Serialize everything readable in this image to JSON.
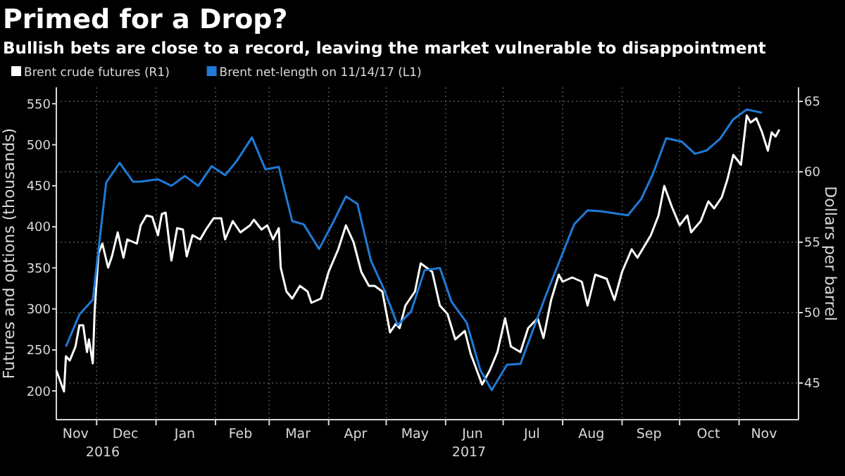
{
  "chart_data": {
    "type": "line",
    "title": "Primed for a Drop?",
    "subtitle": "Bullish bets are close to a record, leaving the market vulnerable to disappointment",
    "ylabel": "Futures and options (thousands)",
    "y2label": "Dollars per barrel",
    "xlim": [
      "2016-11-10",
      "2017-12-02"
    ],
    "xticks": [
      {
        "value": "2016-12-01",
        "label": null
      },
      {
        "value": "2017-01-01",
        "label": null
      },
      {
        "value": "2017-02-01",
        "label": null
      },
      {
        "value": "2017-03-01",
        "label": null
      },
      {
        "value": "2017-04-01",
        "label": null
      },
      {
        "value": "2017-05-01",
        "label": null
      },
      {
        "value": "2017-06-01",
        "label": null
      },
      {
        "value": "2017-07-01",
        "label": null
      },
      {
        "value": "2017-08-01",
        "label": null
      },
      {
        "value": "2017-09-01",
        "label": null
      },
      {
        "value": "2017-10-01",
        "label": null
      },
      {
        "value": "2017-11-01",
        "label": null
      },
      {
        "value": "2016-11-20",
        "label": "Nov"
      },
      {
        "value": "2016-12-16",
        "label": "Dec"
      },
      {
        "value": "2017-01-16",
        "label": "Jan"
      },
      {
        "value": "2017-02-14",
        "label": "Feb"
      },
      {
        "value": "2017-03-16",
        "label": "Mar"
      },
      {
        "value": "2017-04-15",
        "label": "Apr"
      },
      {
        "value": "2017-05-16",
        "label": "May"
      },
      {
        "value": "2017-06-15",
        "label": "Jun"
      },
      {
        "value": "2017-07-16",
        "label": "Jul"
      },
      {
        "value": "2017-08-16",
        "label": "Aug"
      },
      {
        "value": "2017-09-15",
        "label": "Sep"
      },
      {
        "value": "2017-10-16",
        "label": "Oct"
      },
      {
        "value": "2017-11-14",
        "label": "Nov"
      }
    ],
    "ylim": [
      165,
      570
    ],
    "yticks": [
      200,
      250,
      300,
      350,
      400,
      450,
      500,
      550
    ],
    "y2lim": [
      42.4,
      66
    ],
    "y2ticks": [
      45,
      50,
      55,
      60,
      65
    ],
    "grid": true,
    "legend": "top left",
    "line_style": "solid",
    "annotations": [
      "2016",
      "2017"
    ],
    "series": [
      {
        "name": "Brent crude futures (R1)",
        "color": "#ffffff",
        "axis": "y2",
        "x": [
          "2016-11-10",
          "2016-11-14",
          "2016-11-15",
          "2016-11-17",
          "2016-11-20",
          "2016-11-22",
          "2016-11-24",
          "2016-11-26",
          "2016-11-27",
          "2016-11-29",
          "2016-11-30",
          "2016-12-02",
          "2016-12-04",
          "2016-12-07",
          "2016-12-09",
          "2016-12-12",
          "2016-12-15",
          "2016-12-17",
          "2016-12-22",
          "2016-12-24",
          "2016-12-27",
          "2016-12-30",
          "2017-01-02",
          "2017-01-04",
          "2017-01-06",
          "2017-01-09",
          "2017-01-12",
          "2017-01-15",
          "2017-01-17",
          "2017-01-20",
          "2017-01-24",
          "2017-01-27",
          "2017-01-31",
          "2017-02-04",
          "2017-02-06",
          "2017-02-10",
          "2017-02-14",
          "2017-02-19",
          "2017-02-21",
          "2017-02-25",
          "2017-02-28",
          "2017-03-03",
          "2017-03-06",
          "2017-03-07",
          "2017-03-10",
          "2017-03-13",
          "2017-03-17",
          "2017-03-21",
          "2017-03-23",
          "2017-03-28",
          "2017-04-01",
          "2017-04-06",
          "2017-04-10",
          "2017-04-14",
          "2017-04-18",
          "2017-04-22",
          "2017-04-25",
          "2017-04-29",
          "2017-05-03",
          "2017-05-06",
          "2017-05-08",
          "2017-05-11",
          "2017-05-16",
          "2017-05-19",
          "2017-05-22",
          "2017-05-25",
          "2017-05-29",
          "2017-06-02",
          "2017-06-06",
          "2017-06-11",
          "2017-06-14",
          "2017-06-20",
          "2017-06-24",
          "2017-06-28",
          "2017-07-02",
          "2017-07-05",
          "2017-07-10",
          "2017-07-14",
          "2017-07-19",
          "2017-07-22",
          "2017-07-26",
          "2017-07-30",
          "2017-08-01",
          "2017-08-06",
          "2017-08-11",
          "2017-08-14",
          "2017-08-18",
          "2017-08-24",
          "2017-08-28",
          "2017-09-01",
          "2017-09-06",
          "2017-09-09",
          "2017-09-16",
          "2017-09-20",
          "2017-09-23",
          "2017-09-27",
          "2017-10-01",
          "2017-10-05",
          "2017-10-07",
          "2017-10-12",
          "2017-10-16",
          "2017-10-19",
          "2017-10-23",
          "2017-10-26",
          "2017-10-29",
          "2017-11-02",
          "2017-11-05",
          "2017-11-07",
          "2017-11-10",
          "2017-11-13",
          "2017-11-16",
          "2017-11-18",
          "2017-11-20",
          "2017-11-22"
        ],
        "values": [
          45.9,
          44.4,
          46.9,
          46.6,
          47.6,
          49.1,
          49.1,
          47.2,
          48.1,
          46.4,
          50.2,
          54.2,
          54.9,
          53.2,
          54.0,
          55.7,
          53.9,
          55.2,
          54.9,
          56.2,
          56.9,
          56.8,
          55.5,
          57.0,
          57.1,
          53.7,
          56.0,
          55.9,
          54.0,
          55.5,
          55.2,
          55.9,
          56.7,
          56.7,
          55.2,
          56.5,
          55.7,
          56.2,
          56.6,
          55.9,
          56.2,
          55.2,
          56.0,
          53.2,
          51.5,
          51.0,
          51.9,
          51.5,
          50.7,
          51.0,
          52.9,
          54.5,
          56.2,
          55.0,
          52.9,
          51.9,
          51.9,
          51.5,
          48.6,
          49.2,
          48.9,
          50.5,
          51.5,
          53.5,
          53.2,
          52.9,
          50.5,
          49.9,
          48.1,
          48.7,
          47.1,
          44.9,
          45.9,
          47.2,
          49.6,
          47.6,
          47.2,
          48.9,
          49.6,
          48.2,
          50.9,
          52.7,
          52.2,
          52.5,
          52.2,
          50.5,
          52.7,
          52.4,
          50.9,
          52.9,
          54.5,
          53.9,
          55.5,
          56.9,
          59.0,
          57.5,
          56.2,
          56.9,
          55.7,
          56.5,
          57.9,
          57.4,
          58.2,
          59.5,
          61.2,
          60.5,
          64.0,
          63.5,
          63.8,
          62.8,
          61.5,
          62.8,
          62.5,
          63.0
        ]
      },
      {
        "name": "Brent net-length on 11/14/17 (L1)",
        "color": "#1f7ad6",
        "x": [
          "2016-11-15",
          "2016-11-22",
          "2016-11-29",
          "2016-12-06",
          "2016-12-13",
          "2016-12-20",
          "2016-12-24",
          "2017-01-02",
          "2017-01-09",
          "2017-01-16",
          "2017-01-23",
          "2017-01-30",
          "2017-02-06",
          "2017-02-12",
          "2017-02-20",
          "2017-02-27",
          "2017-03-06",
          "2017-03-13",
          "2017-03-19",
          "2017-03-27",
          "2017-04-03",
          "2017-04-10",
          "2017-04-16",
          "2017-04-23",
          "2017-04-30",
          "2017-05-07",
          "2017-05-14",
          "2017-05-21",
          "2017-05-29",
          "2017-06-04",
          "2017-06-12",
          "2017-06-19",
          "2017-06-25",
          "2017-07-03",
          "2017-07-10",
          "2017-07-23",
          "2017-08-07",
          "2017-08-14",
          "2017-08-21",
          "2017-09-04",
          "2017-09-11",
          "2017-09-17",
          "2017-09-24",
          "2017-10-02",
          "2017-10-09",
          "2017-10-15",
          "2017-10-22",
          "2017-10-29",
          "2017-11-05",
          "2017-11-13"
        ],
        "values": [
          254,
          293,
          311,
          454,
          478,
          455,
          455,
          458,
          450,
          462,
          450,
          474,
          463,
          480,
          509,
          470,
          473,
          407,
          403,
          373,
          404,
          437,
          428,
          359,
          323,
          280,
          297,
          347,
          350,
          309,
          283,
          226,
          201,
          232,
          233,
          315,
          403,
          420,
          419,
          414,
          434,
          464,
          508,
          504,
          489,
          493,
          507,
          531,
          543,
          539
        ]
      }
    ]
  }
}
